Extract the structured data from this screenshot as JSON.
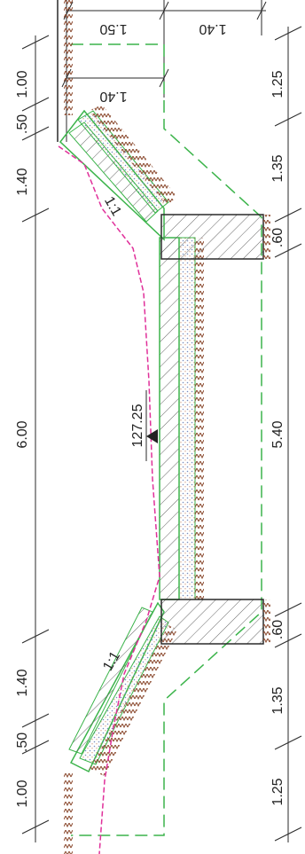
{
  "colors": {
    "dimension": "#2a2a2a",
    "structure": "#3cb44b",
    "soil": "#8b4a2f",
    "gravel": "#7a8fc0",
    "profile": "#e0309a",
    "hatch": "#555555"
  },
  "left_dims": [
    "1.00",
    ".50",
    "1.40",
    "6.00",
    "1.40",
    ".50",
    "1.00"
  ],
  "right_dims": [
    "1.25",
    "1.35",
    ".60",
    "5.40",
    ".60",
    "1.35",
    "1.25"
  ],
  "top_dims": [
    "1.50",
    "1.40"
  ],
  "inner_dim": "1.40",
  "slope_top": "1:1",
  "slope_bottom": "1:1",
  "elevation": "127.25"
}
